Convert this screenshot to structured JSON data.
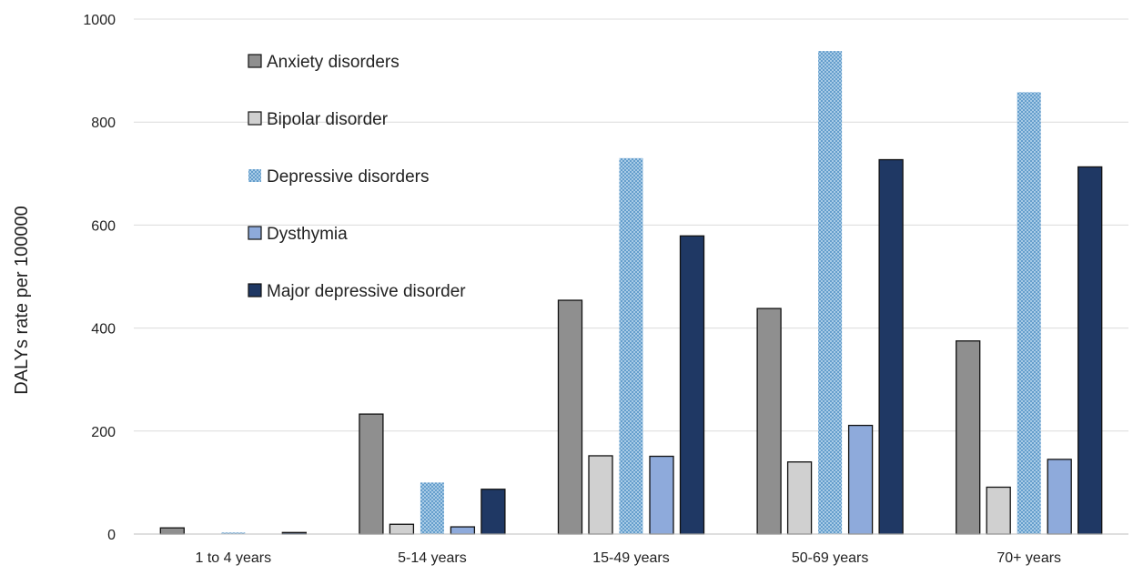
{
  "chart_data": {
    "type": "bar",
    "title": "",
    "xlabel": "",
    "ylabel": "DALYs  rate per 100000",
    "ylim": [
      0,
      1000
    ],
    "yticks": [
      0,
      200,
      400,
      600,
      800,
      1000
    ],
    "grid": true,
    "legend_position": "top-left",
    "categories": [
      "1 to 4 years",
      "5-14 years",
      "15-49 years",
      "50-69 years",
      "70+ years"
    ],
    "series": [
      {
        "name": "Anxiety disorders",
        "values": [
          12,
          233,
          454,
          438,
          375
        ],
        "color": "#8f8f8f"
      },
      {
        "name": "Bipolar disorder",
        "values": [
          0,
          19,
          152,
          140,
          91
        ],
        "color": "#d0d0d0"
      },
      {
        "name": "Depressive disorders",
        "values": [
          3,
          100,
          730,
          938,
          858
        ],
        "color": "#7fb3d8",
        "pattern": "dotted"
      },
      {
        "name": "Dysthymia",
        "values": [
          0,
          14,
          151,
          211,
          145
        ],
        "color": "#8eaadb"
      },
      {
        "name": "Major depressive disorder",
        "values": [
          3,
          87,
          579,
          727,
          713
        ],
        "color": "#1f3864"
      }
    ]
  }
}
